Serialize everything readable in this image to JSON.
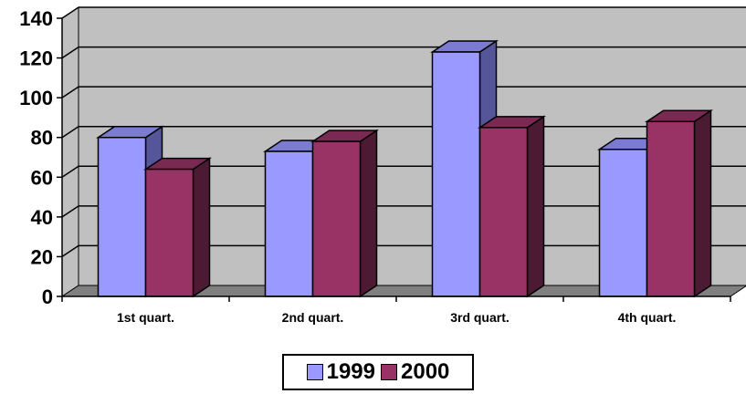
{
  "chart_data": {
    "type": "bar",
    "categories": [
      "1st quart.",
      "2nd quart.",
      "3rd quart.",
      "4th quart."
    ],
    "series": [
      {
        "name": "1999",
        "values": [
          80,
          73,
          123,
          74
        ],
        "color": "#9999ff",
        "side_color": "#55559a",
        "top_color": "#7b7bd4"
      },
      {
        "name": "2000",
        "values": [
          64,
          78,
          85,
          88
        ],
        "color": "#993366",
        "side_color": "#4d1a33",
        "top_color": "#7a2952"
      }
    ],
    "ylim": [
      0,
      140
    ],
    "yticks": [
      0,
      20,
      40,
      60,
      80,
      100,
      120,
      140
    ],
    "grid": true,
    "wall_color": "#c0c0c0",
    "floor_color": "#808080",
    "legend_position": "bottom"
  }
}
